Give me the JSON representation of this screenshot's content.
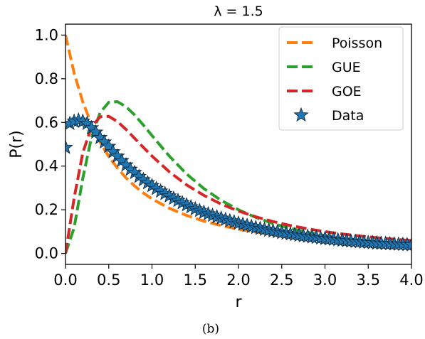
{
  "chart_data": {
    "type": "line",
    "title": "λ = 1.5",
    "xlabel": "r",
    "ylabel": "P(r)",
    "xlim": [
      0,
      4
    ],
    "ylim": [
      -0.05,
      1.05
    ],
    "x_ticks": [
      "0.0",
      "0.5",
      "1.0",
      "1.5",
      "2.0",
      "2.5",
      "3.0",
      "3.5",
      "4.0"
    ],
    "y_ticks": [
      "0.0",
      "0.2",
      "0.4",
      "0.6",
      "0.8",
      "1.0"
    ],
    "grid": false,
    "legend_position": "top-right",
    "series": [
      {
        "name": "Poisson",
        "style": "dashed",
        "color": "#ff7f0e",
        "x": [
          0,
          0.1,
          0.2,
          0.3,
          0.4,
          0.5,
          0.6,
          0.7,
          0.8,
          0.9,
          1.0,
          1.2,
          1.4,
          1.6,
          1.8,
          2.0,
          2.2,
          2.4,
          2.6,
          2.8,
          3.0,
          3.2,
          3.4,
          3.6,
          3.8,
          4.0
        ],
        "y": [
          1.0,
          0.826,
          0.694,
          0.592,
          0.51,
          0.444,
          0.391,
          0.346,
          0.309,
          0.277,
          0.25,
          0.207,
          0.174,
          0.148,
          0.128,
          0.111,
          0.098,
          0.087,
          0.077,
          0.069,
          0.063,
          0.057,
          0.052,
          0.047,
          0.043,
          0.04
        ]
      },
      {
        "name": "GUE",
        "style": "dashed",
        "color": "#2ca02c",
        "x": [
          0,
          0.1,
          0.2,
          0.3,
          0.4,
          0.5,
          0.6,
          0.7,
          0.8,
          0.9,
          1.0,
          1.2,
          1.4,
          1.6,
          1.8,
          2.0,
          2.2,
          2.4,
          2.6,
          2.8,
          3.0,
          3.2,
          3.4,
          3.6,
          3.8,
          4.0
        ],
        "y": [
          0.0,
          0.118,
          0.344,
          0.531,
          0.645,
          0.692,
          0.695,
          0.672,
          0.634,
          0.588,
          0.54,
          0.446,
          0.364,
          0.297,
          0.243,
          0.2,
          0.165,
          0.137,
          0.115,
          0.097,
          0.082,
          0.07,
          0.06,
          0.051,
          0.044,
          0.038
        ]
      },
      {
        "name": "GOE",
        "style": "dashed",
        "color": "#d62728",
        "x": [
          0,
          0.1,
          0.2,
          0.3,
          0.4,
          0.5,
          0.6,
          0.7,
          0.8,
          0.9,
          1.0,
          1.2,
          1.4,
          1.6,
          1.8,
          2.0,
          2.2,
          2.4,
          2.6,
          2.8,
          3.0,
          3.2,
          3.4,
          3.6,
          3.8,
          4.0
        ],
        "y": [
          0.0,
          0.254,
          0.461,
          0.579,
          0.626,
          0.628,
          0.604,
          0.568,
          0.527,
          0.486,
          0.446,
          0.374,
          0.314,
          0.266,
          0.226,
          0.194,
          0.168,
          0.146,
          0.128,
          0.113,
          0.1,
          0.089,
          0.08,
          0.072,
          0.065,
          0.059
        ]
      },
      {
        "name": "Data",
        "style": "markers",
        "marker": "star",
        "color": "#1f77b4",
        "x": [
          0.0,
          0.05,
          0.1,
          0.15,
          0.2,
          0.25,
          0.3,
          0.35,
          0.4,
          0.45,
          0.5,
          0.55,
          0.6,
          0.65,
          0.7,
          0.75,
          0.8,
          0.85,
          0.9,
          0.95,
          1.0,
          1.05,
          1.1,
          1.15,
          1.2,
          1.25,
          1.3,
          1.35,
          1.4,
          1.45,
          1.5,
          1.55,
          1.6,
          1.65,
          1.7,
          1.75,
          1.8,
          1.85,
          1.9,
          1.95,
          2.0,
          2.05,
          2.1,
          2.15,
          2.2,
          2.25,
          2.3,
          2.35,
          2.4,
          2.45,
          2.5,
          2.55,
          2.6,
          2.65,
          2.7,
          2.75,
          2.8,
          2.85,
          2.9,
          2.95,
          3.0,
          3.05,
          3.1,
          3.15,
          3.2,
          3.25,
          3.3,
          3.35,
          3.4,
          3.45,
          3.5,
          3.55,
          3.6,
          3.65,
          3.7,
          3.75,
          3.8,
          3.85,
          3.9,
          3.95,
          4.0
        ],
        "y": [
          0.485,
          0.595,
          0.605,
          0.61,
          0.605,
          0.595,
          0.575,
          0.555,
          0.53,
          0.51,
          0.49,
          0.465,
          0.445,
          0.425,
          0.405,
          0.385,
          0.37,
          0.352,
          0.337,
          0.323,
          0.31,
          0.297,
          0.285,
          0.274,
          0.263,
          0.252,
          0.242,
          0.232,
          0.222,
          0.213,
          0.204,
          0.196,
          0.188,
          0.181,
          0.174,
          0.167,
          0.161,
          0.155,
          0.149,
          0.144,
          0.138,
          0.133,
          0.128,
          0.123,
          0.118,
          0.114,
          0.11,
          0.106,
          0.102,
          0.099,
          0.095,
          0.092,
          0.089,
          0.086,
          0.083,
          0.08,
          0.078,
          0.075,
          0.073,
          0.07,
          0.068,
          0.066,
          0.064,
          0.062,
          0.06,
          0.058,
          0.056,
          0.055,
          0.053,
          0.051,
          0.05,
          0.049,
          0.047,
          0.046,
          0.045,
          0.044,
          0.043,
          0.042,
          0.041,
          0.04,
          0.039
        ]
      }
    ]
  },
  "caption": "(b)"
}
